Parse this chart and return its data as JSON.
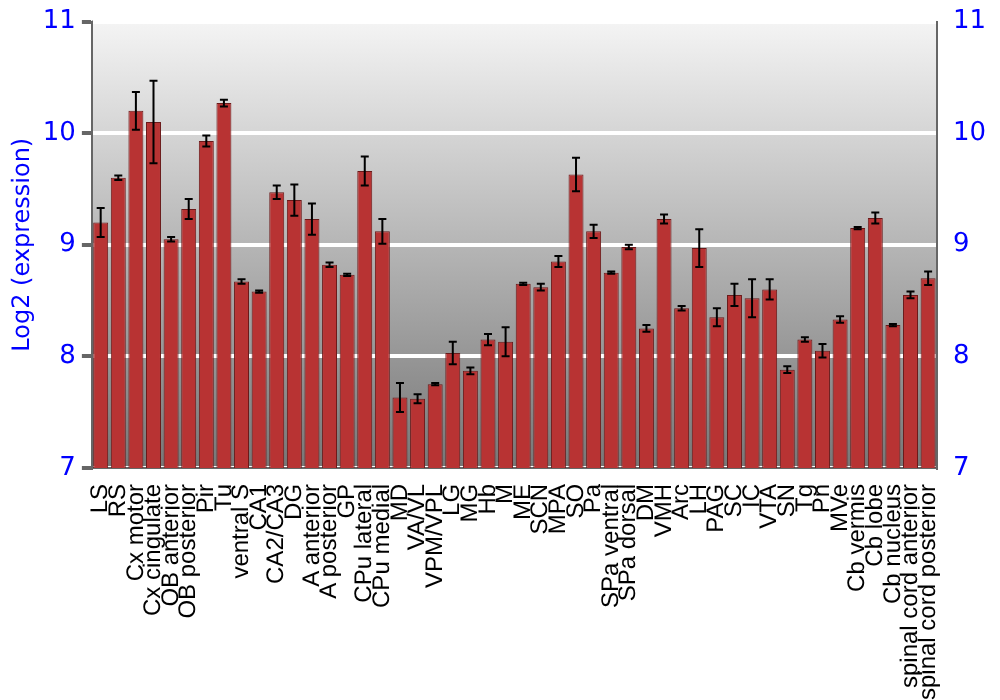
{
  "chart_data": {
    "type": "bar",
    "ylabel": "Log2 (expression)",
    "categories": [
      "LS",
      "RS",
      "Cx motor",
      "Cx cingulate",
      "OB anterior",
      "OB posterior",
      "Pir",
      "Tu",
      "ventral S",
      "CA1",
      "CA2/CA3",
      "DG",
      "A anterior",
      "A posterior",
      "GP",
      "CPu lateral",
      "CPu medial",
      "MD",
      "VA/VL",
      "VPM/VPL",
      "LG",
      "MG",
      "Hb",
      "M",
      "ME",
      "SCN",
      "MPA",
      "SO",
      "Pa",
      "SPa ventral",
      "SPa dorsal",
      "DM",
      "VMH",
      "Arc",
      "LH",
      "PAG",
      "SC",
      "IC",
      "VTA",
      "SN",
      "Tg",
      "Pn",
      "MVe",
      "Cb vermis",
      "Cb lobe",
      "Cb nucleus",
      "spinal cord anterior",
      "spinal cord posterior"
    ],
    "values": [
      9.2,
      9.6,
      10.2,
      10.1,
      9.05,
      9.32,
      9.93,
      10.27,
      8.67,
      8.58,
      9.47,
      9.4,
      9.23,
      8.82,
      8.73,
      9.66,
      9.12,
      7.63,
      7.62,
      7.75,
      8.03,
      7.87,
      8.15,
      8.13,
      8.65,
      8.62,
      8.85,
      9.63,
      9.12,
      8.75,
      8.98,
      8.25,
      9.23,
      8.43,
      8.97,
      8.35,
      8.55,
      8.52,
      8.6,
      7.88,
      8.15,
      8.05,
      8.33,
      9.15,
      9.24,
      8.28,
      8.55,
      8.7
    ],
    "errors": [
      0.13,
      0.02,
      0.17,
      0.37,
      0.02,
      0.09,
      0.05,
      0.03,
      0.02,
      0.01,
      0.06,
      0.14,
      0.14,
      0.02,
      0.01,
      0.13,
      0.11,
      0.13,
      0.04,
      0.01,
      0.1,
      0.03,
      0.05,
      0.13,
      0.01,
      0.03,
      0.05,
      0.15,
      0.06,
      0.01,
      0.02,
      0.03,
      0.04,
      0.02,
      0.17,
      0.08,
      0.1,
      0.17,
      0.09,
      0.03,
      0.02,
      0.06,
      0.03,
      0.01,
      0.05,
      0.01,
      0.03,
      0.06
    ],
    "color": "#b83333",
    "ylim": [
      7,
      11
    ],
    "yticks": [
      7,
      8,
      9,
      10,
      11
    ],
    "y2lim": [
      7,
      11
    ],
    "y2ticks": [
      7,
      8,
      9,
      10,
      11
    ],
    "grid": "y",
    "legend": false
  }
}
